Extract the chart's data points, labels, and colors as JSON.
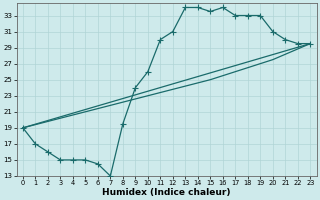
{
  "xlabel": "Humidex (Indice chaleur)",
  "background_color": "#ceeaeb",
  "grid_color": "#b0d5d6",
  "line_color": "#1a6b6b",
  "xlim": [
    -0.5,
    23.5
  ],
  "ylim": [
    13,
    34.5
  ],
  "yticks": [
    13,
    15,
    17,
    19,
    21,
    23,
    25,
    27,
    29,
    31,
    33
  ],
  "xticks": [
    0,
    1,
    2,
    3,
    4,
    5,
    6,
    7,
    8,
    9,
    10,
    11,
    12,
    13,
    14,
    15,
    16,
    17,
    18,
    19,
    20,
    21,
    22,
    23
  ],
  "curve_x": [
    0,
    1,
    2,
    3,
    4,
    5,
    6,
    7,
    8,
    9,
    10,
    11,
    12,
    13,
    14,
    15,
    16,
    17,
    18,
    19,
    20,
    21,
    22,
    23
  ],
  "curve_y": [
    19,
    17,
    16,
    15,
    15,
    15,
    14.5,
    13,
    19.5,
    24,
    26,
    30,
    31,
    34,
    34,
    33.5,
    34,
    33,
    33,
    33,
    31,
    30,
    29.5,
    29.5
  ],
  "line1_x": [
    0,
    23
  ],
  "line1_y": [
    19,
    29.5
  ],
  "line2_x": [
    0,
    10,
    15,
    20,
    23
  ],
  "line2_y": [
    19,
    23,
    25,
    27.5,
    29.5
  ]
}
